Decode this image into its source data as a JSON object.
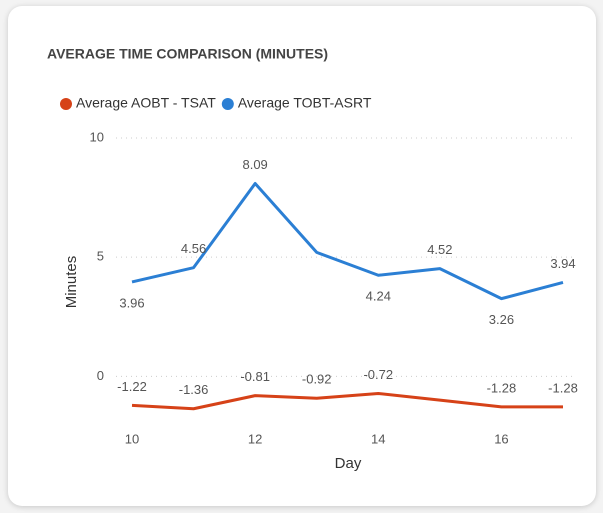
{
  "chart_data": {
    "type": "line",
    "title": "AVERAGE TIME COMPARISON (MINUTES)",
    "x_label": "Day",
    "y_label": "Minutes",
    "x": [
      10,
      11,
      12,
      13,
      14,
      15,
      16,
      17
    ],
    "series": [
      {
        "name": "Average AOBT - TSAT",
        "color": "#d64218",
        "values": [
          -1.22,
          -1.36,
          -0.81,
          -0.92,
          -0.72,
          -1.0,
          -1.28,
          -1.28
        ],
        "value_labels": [
          "-1.22",
          "-1.36",
          "-0.81",
          "-0.92",
          "-0.72",
          null,
          "-1.28",
          "-1.28"
        ]
      },
      {
        "name": "Average TOBT-ASRT",
        "color": "#2b7fd4",
        "values": [
          3.96,
          4.56,
          8.09,
          5.2,
          4.24,
          4.52,
          3.26,
          3.94
        ],
        "value_labels": [
          "3.96",
          "4.56",
          "8.09",
          null,
          "4.24",
          "4.52",
          "3.26",
          "3.94"
        ]
      }
    ],
    "xlim": [
      10,
      17
    ],
    "xticks": [
      10,
      12,
      14,
      16
    ],
    "ylim": [
      -2,
      10
    ],
    "yticks": [
      0,
      5,
      10
    ],
    "grid": true
  }
}
